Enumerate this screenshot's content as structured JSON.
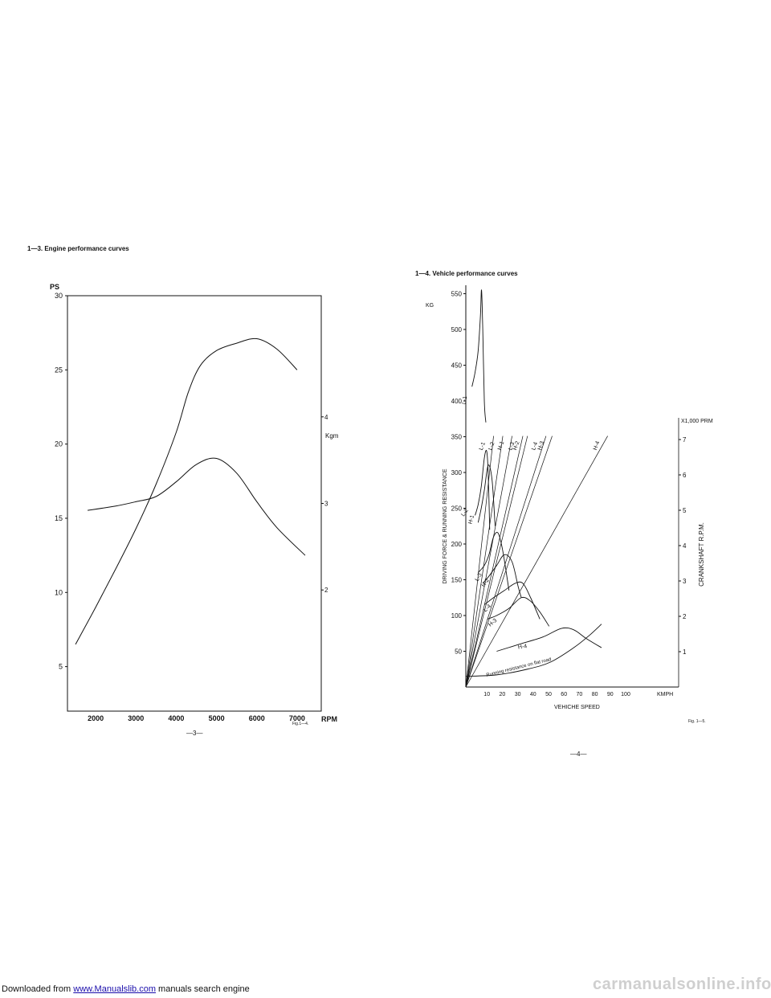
{
  "left": {
    "title": "1—3.   Engine performance curves",
    "y_unit_left": "PS",
    "y_ticks_left": [
      "30",
      "25",
      "20",
      "15",
      "10",
      "5"
    ],
    "y_unit_right": "Kgm",
    "y_ticks_right": [
      "4",
      "3",
      "2"
    ],
    "x_ticks": [
      "2000",
      "3000",
      "4000",
      "5000",
      "6000",
      "7000"
    ],
    "x_unit": "RPM",
    "fig_label": "Fig.1—4.",
    "page_number": "—3—"
  },
  "right": {
    "title": "1—4.   Vehicle performance curves",
    "y_unit": "KG",
    "y_ticks": [
      "550",
      "500",
      "450",
      "400",
      "350",
      "300",
      "250",
      "200",
      "150",
      "100",
      "50"
    ],
    "y_label": "DRIVING FORCE & RUNNING RESISTANCE",
    "right_unit": "X1,000 PRM",
    "right_ticks": [
      "7",
      "6",
      "5",
      "4",
      "3",
      "2",
      "1"
    ],
    "right_label": "CRANKSHAFT  R.P.M.",
    "x_ticks": [
      "10",
      "20",
      "30",
      "40",
      "50",
      "60",
      "70",
      "80",
      "90",
      "100"
    ],
    "x_unit": "KMPH",
    "x_label": "VEHICHE SPEED",
    "curve_labels": [
      "L-1",
      "L-2",
      "H-1",
      "L-3",
      "H-2",
      "L-4",
      "H-3",
      "H-4"
    ],
    "line_labels": [
      "L-1",
      "L-2",
      "H-1",
      "L-3",
      "H-2",
      "L-4",
      "H-3",
      "H-4"
    ],
    "resistance_label": "Running resistance on flat road",
    "fig_label": "Fig. 1—5.",
    "page_number": "—4—"
  },
  "footer": {
    "prefix": "Downloaded from ",
    "link_text": "www.Manualslib.com",
    "suffix": " manuals search engine",
    "watermark": "carmanualsonline.info"
  },
  "chart_data": [
    {
      "type": "line",
      "title": "1—3.   Engine performance curves",
      "xlabel": "RPM",
      "ylabel": "PS",
      "ylabel_right": "Kgm",
      "xlim": [
        1300,
        7600
      ],
      "ylim": [
        2,
        30
      ],
      "ylim_right": [
        0.6,
        5.4
      ],
      "grid": false,
      "series": [
        {
          "axis": "left",
          "x": [
            1500,
            2000,
            2500,
            3000,
            3500,
            4000,
            4300,
            4600,
            5000,
            5500,
            6000,
            6500,
            7000
          ],
          "values": [
            6.5,
            9,
            11.6,
            14.3,
            17.3,
            20.8,
            23.5,
            25.3,
            26.3,
            26.8,
            27.1,
            26.4,
            25
          ]
        },
        {
          "axis": "right",
          "x": [
            1800,
            2500,
            3000,
            3500,
            4000,
            4500,
            5000,
            5500,
            6000,
            6500,
            7200
          ],
          "values": [
            2.92,
            2.97,
            3.02,
            3.08,
            3.25,
            3.45,
            3.52,
            3.35,
            3.02,
            2.72,
            2.4
          ]
        }
      ]
    },
    {
      "type": "line",
      "title": "1—4.   Vehicle performance curves",
      "xlabel": "VEHICHE SPEED",
      "ylabel": "DRIVING FORCE & RUNNING RESISTANCE",
      "ylabel_right": "CRANKSHAFT  R.P.M.",
      "xlim": [
        0,
        110
      ],
      "ylim": [
        0,
        560
      ],
      "ylim_right": [
        0,
        7.8
      ],
      "grid": false,
      "series": [
        {
          "name": "L-1",
          "x": [
            4,
            6,
            8,
            9.5,
            10.2,
            11,
            12,
            13
          ],
          "values": [
            420,
            440,
            470,
            520,
            555,
            500,
            400,
            370
          ]
        },
        {
          "name": "L-2",
          "x": [
            6,
            8,
            10,
            12,
            13.5,
            14.5,
            15.5
          ],
          "values": [
            240,
            255,
            280,
            320,
            330,
            300,
            220
          ]
        },
        {
          "name": "H-1",
          "x": [
            8,
            10,
            12,
            14.5,
            17,
            19
          ],
          "values": [
            230,
            250,
            275,
            310,
            290,
            225
          ]
        },
        {
          "name": "L-3",
          "x": [
            8,
            12,
            15,
            18,
            21,
            24,
            28
          ],
          "values": [
            160,
            170,
            185,
            210,
            215,
            190,
            135
          ]
        },
        {
          "name": "H-2",
          "x": [
            11,
            15,
            20,
            25,
            30,
            34,
            36
          ],
          "values": [
            145,
            155,
            170,
            185,
            175,
            140,
            125
          ]
        },
        {
          "name": "L-4",
          "x": [
            12,
            18,
            25,
            32,
            37,
            42,
            48
          ],
          "values": [
            115,
            125,
            135,
            145,
            145,
            125,
            95
          ]
        },
        {
          "name": "H-3",
          "x": [
            14,
            20,
            28,
            36,
            42,
            48,
            54
          ],
          "values": [
            95,
            100,
            110,
            125,
            120,
            105,
            85
          ]
        },
        {
          "name": "H-4",
          "x": [
            20,
            35,
            50,
            62,
            70,
            78,
            88
          ],
          "values": [
            50,
            60,
            70,
            82,
            80,
            68,
            55
          ]
        },
        {
          "name": "Running resistance on flat road",
          "x": [
            0,
            20,
            40,
            55,
            70,
            80,
            88
          ],
          "values": [
            15,
            17,
            25,
            35,
            55,
            72,
            88
          ]
        }
      ],
      "rpm_lines": [
        {
          "name": "L-1",
          "x": [
            0,
            18
          ],
          "values": [
            0,
            7.1
          ]
        },
        {
          "name": "L-2",
          "x": [
            0,
            24
          ],
          "values": [
            0,
            7.1
          ]
        },
        {
          "name": "H-1",
          "x": [
            0,
            30
          ],
          "values": [
            0,
            7.1
          ]
        },
        {
          "name": "L-3",
          "x": [
            0,
            37
          ],
          "values": [
            0,
            7.1
          ]
        },
        {
          "name": "H-2",
          "x": [
            0,
            40
          ],
          "values": [
            0,
            7.1
          ]
        },
        {
          "name": "L-4",
          "x": [
            0,
            52
          ],
          "values": [
            0,
            7.1
          ]
        },
        {
          "name": "H-3",
          "x": [
            0,
            56
          ],
          "values": [
            0,
            7.1
          ]
        },
        {
          "name": "H-4",
          "x": [
            0,
            92
          ],
          "values": [
            0,
            7.1
          ]
        }
      ]
    }
  ]
}
